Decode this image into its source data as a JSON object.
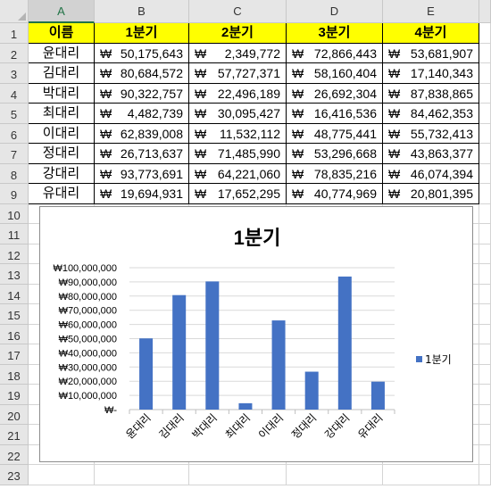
{
  "columns": [
    "A",
    "B",
    "C",
    "D",
    "E"
  ],
  "rows": [
    "1",
    "2",
    "3",
    "4",
    "5",
    "6",
    "7",
    "8",
    "9",
    "10",
    "11",
    "12",
    "13",
    "14",
    "15",
    "16",
    "17",
    "18",
    "19",
    "20",
    "21",
    "22",
    "23"
  ],
  "table": {
    "headers": [
      "이름",
      "1분기",
      "2분기",
      "3분기",
      "4분기"
    ],
    "currency": "₩",
    "data": [
      [
        "윤대리",
        "50,175,643",
        "2,349,772",
        "72,866,443",
        "53,681,907"
      ],
      [
        "김대리",
        "80,684,572",
        "57,727,371",
        "58,160,404",
        "17,140,343"
      ],
      [
        "박대리",
        "90,322,757",
        "22,496,189",
        "26,692,304",
        "87,838,865"
      ],
      [
        "최대리",
        "4,482,739",
        "30,095,427",
        "16,416,536",
        "84,462,353"
      ],
      [
        "이대리",
        "62,839,008",
        "11,532,112",
        "48,775,441",
        "55,732,413"
      ],
      [
        "정대리",
        "26,713,637",
        "71,485,990",
        "53,296,668",
        "43,863,377"
      ],
      [
        "강대리",
        "93,773,691",
        "64,221,060",
        "78,835,216",
        "46,074,394"
      ],
      [
        "유대리",
        "19,694,931",
        "17,652,295",
        "40,774,969",
        "20,801,395"
      ]
    ]
  },
  "colors": {
    "header_fill": "#ffff00",
    "bar": "#4472c4",
    "selected_col": "#217346"
  },
  "chart_data": {
    "type": "bar",
    "title": "1분기",
    "categories": [
      "윤대리",
      "김대리",
      "박대리",
      "최대리",
      "이대리",
      "정대리",
      "강대리",
      "유대리"
    ],
    "series": [
      {
        "name": "1분기",
        "values": [
          50175643,
          80684572,
          90322757,
          4482739,
          62839008,
          26713637,
          93773691,
          19694931
        ]
      }
    ],
    "ylim": [
      0,
      100000000
    ],
    "yticks": [
      0,
      10000000,
      20000000,
      30000000,
      40000000,
      50000000,
      60000000,
      70000000,
      80000000,
      90000000,
      100000000
    ],
    "ytick_labels": [
      "₩-",
      "₩10,000,000",
      "₩20,000,000",
      "₩30,000,000",
      "₩40,000,000",
      "₩50,000,000",
      "₩60,000,000",
      "₩70,000,000",
      "₩80,000,000",
      "₩90,000,000",
      "₩100,000,000"
    ],
    "grid": true,
    "legend": "right"
  }
}
